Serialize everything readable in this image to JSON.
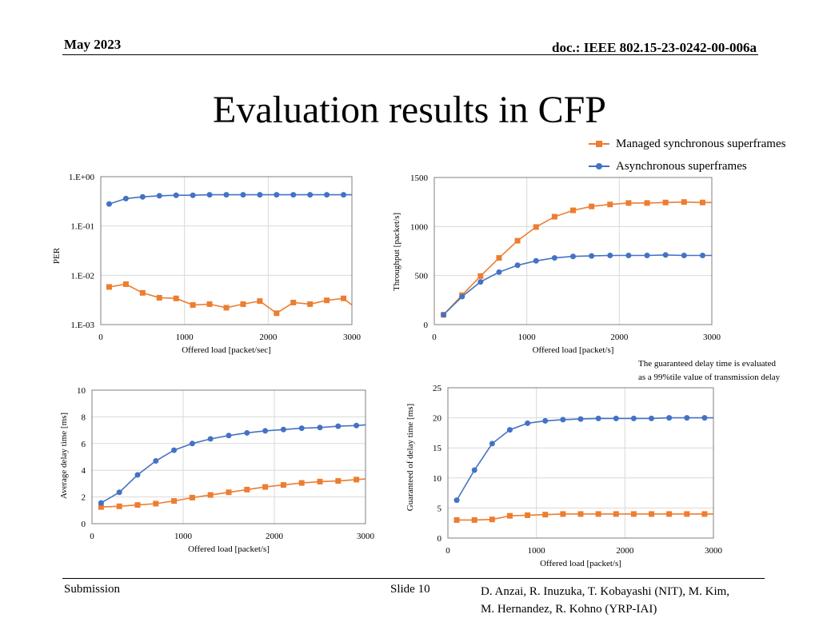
{
  "header": {
    "date": "May 2023",
    "doc": "doc.: IEEE 802.15-23-0242-00-006a"
  },
  "slide_title": "Evaluation results in CFP",
  "colors": {
    "managed": "#ED7D31",
    "async": "#4472C4",
    "grid": "#D9D9D9",
    "axis": "#7F7F7F"
  },
  "legend": {
    "managed": "Managed synchronous superframes",
    "async": "Asynchronous superframes"
  },
  "note": {
    "line1": "The guaranteed delay time is evaluated",
    "line2": "as a 99%tile value of transmission delay"
  },
  "footer": {
    "left": "Submission",
    "slide": "Slide 10",
    "authors_line1": "D. Anzai, R. Inuzuka, T. Kobayashi (NIT), M. Kim,",
    "authors_line2": "M. Hernandez, R. Kohno (YRP-IAI)"
  },
  "chart_data": [
    {
      "type": "line",
      "scale": "log",
      "ylabel": "PER",
      "xlabel": "Offered load [packet/sec]",
      "xlim": [
        0,
        3000
      ],
      "ylim": [
        0.001,
        1
      ],
      "xticks": [
        0,
        1000,
        2000,
        3000
      ],
      "xtick_labels": [
        "0",
        "1000",
        "2000",
        "3000"
      ],
      "yticks": [
        1,
        0.1,
        0.01,
        0.001
      ],
      "ytick_labels": [
        "1.E+00",
        "1.E-01",
        "1.E-02",
        "1.E-03"
      ],
      "x": [
        100,
        300,
        500,
        700,
        900,
        1100,
        1300,
        1500,
        1700,
        1900,
        2100,
        2300,
        2500,
        2700,
        2900,
        3000
      ],
      "series": [
        {
          "name": "Managed synchronous superframes",
          "key": "managed",
          "values": [
            0.0058,
            0.0066,
            0.0044,
            0.0035,
            0.0034,
            0.0025,
            0.0026,
            0.0022,
            0.0026,
            0.003,
            0.0017,
            0.0028,
            0.0026,
            0.0031,
            0.0034,
            0.0025
          ]
        },
        {
          "name": "Asynchronous superframes",
          "key": "async",
          "values": [
            0.28,
            0.36,
            0.39,
            0.41,
            0.42,
            0.42,
            0.43,
            0.43,
            0.43,
            0.43,
            0.43,
            0.43,
            0.43,
            0.43,
            0.43,
            0.43
          ]
        }
      ]
    },
    {
      "type": "line",
      "scale": "linear",
      "ylabel": "Throughput [packet/s]",
      "xlabel": "Offered load [packet/s]",
      "xlim": [
        0,
        3000
      ],
      "ylim": [
        0,
        1500
      ],
      "xticks": [
        0,
        1000,
        2000,
        3000
      ],
      "xtick_labels": [
        "0",
        "1000",
        "2000",
        "3000"
      ],
      "yticks": [
        0,
        500,
        1000,
        1500
      ],
      "ytick_labels": [
        "0",
        "500",
        "1000",
        "1500"
      ],
      "x": [
        100,
        300,
        500,
        700,
        900,
        1100,
        1300,
        1500,
        1700,
        1900,
        2100,
        2300,
        2500,
        2700,
        2900,
        3000
      ],
      "series": [
        {
          "name": "Managed synchronous superframes",
          "key": "managed",
          "values": [
            100,
            300,
            495,
            680,
            855,
            995,
            1100,
            1165,
            1205,
            1225,
            1240,
            1240,
            1245,
            1250,
            1245,
            1245
          ]
        },
        {
          "name": "Asynchronous superframes",
          "key": "async",
          "values": [
            100,
            285,
            435,
            535,
            605,
            650,
            680,
            695,
            700,
            705,
            705,
            705,
            710,
            705,
            705,
            705
          ]
        }
      ]
    },
    {
      "type": "line",
      "scale": "linear",
      "ylabel": "Average delay time [ms]",
      "xlabel": "Offered load [packet/s]",
      "xlim": [
        0,
        3000
      ],
      "ylim": [
        0,
        10
      ],
      "xticks": [
        0,
        1000,
        2000,
        3000
      ],
      "xtick_labels": [
        "0",
        "1000",
        "2000",
        "3000"
      ],
      "yticks": [
        0,
        2,
        4,
        6,
        8,
        10
      ],
      "ytick_labels": [
        "0",
        "2",
        "4",
        "6",
        "8",
        "10"
      ],
      "x": [
        100,
        300,
        500,
        700,
        900,
        1100,
        1300,
        1500,
        1700,
        1900,
        2100,
        2300,
        2500,
        2700,
        2900,
        3000
      ],
      "series": [
        {
          "name": "Managed synchronous superframes",
          "key": "managed",
          "values": [
            1.25,
            1.3,
            1.4,
            1.5,
            1.7,
            1.95,
            2.15,
            2.35,
            2.55,
            2.75,
            2.9,
            3.05,
            3.15,
            3.2,
            3.3,
            3.35
          ]
        },
        {
          "name": "Asynchronous superframes",
          "key": "async",
          "values": [
            1.55,
            2.35,
            3.65,
            4.7,
            5.5,
            6.0,
            6.35,
            6.6,
            6.8,
            6.95,
            7.05,
            7.15,
            7.2,
            7.3,
            7.35,
            7.4
          ]
        }
      ]
    },
    {
      "type": "line",
      "scale": "linear",
      "ylabel": "Guaranteed of delay time [ms]",
      "xlabel": "Offered load [packet/s]",
      "xlim": [
        0,
        3000
      ],
      "ylim": [
        0,
        25
      ],
      "xticks": [
        0,
        1000,
        2000,
        3000
      ],
      "xtick_labels": [
        "0",
        "1000",
        "2000",
        "3000"
      ],
      "yticks": [
        0,
        5,
        10,
        15,
        20,
        25
      ],
      "ytick_labels": [
        "0",
        "5",
        "10",
        "15",
        "20",
        "25"
      ],
      "x": [
        100,
        300,
        500,
        700,
        900,
        1100,
        1300,
        1500,
        1700,
        1900,
        2100,
        2300,
        2500,
        2700,
        2900,
        3000
      ],
      "series": [
        {
          "name": "Managed synchronous superframes",
          "key": "managed",
          "values": [
            3.0,
            3.0,
            3.1,
            3.7,
            3.8,
            3.9,
            4.0,
            4.0,
            4.0,
            4.0,
            4.0,
            4.0,
            4.0,
            4.0,
            4.0,
            4.0
          ]
        },
        {
          "name": "Asynchronous superframes",
          "key": "async",
          "values": [
            6.3,
            11.3,
            15.7,
            18.0,
            19.1,
            19.5,
            19.7,
            19.8,
            19.9,
            19.9,
            19.9,
            19.9,
            20.0,
            20.0,
            20.0,
            20.0
          ]
        }
      ]
    }
  ]
}
